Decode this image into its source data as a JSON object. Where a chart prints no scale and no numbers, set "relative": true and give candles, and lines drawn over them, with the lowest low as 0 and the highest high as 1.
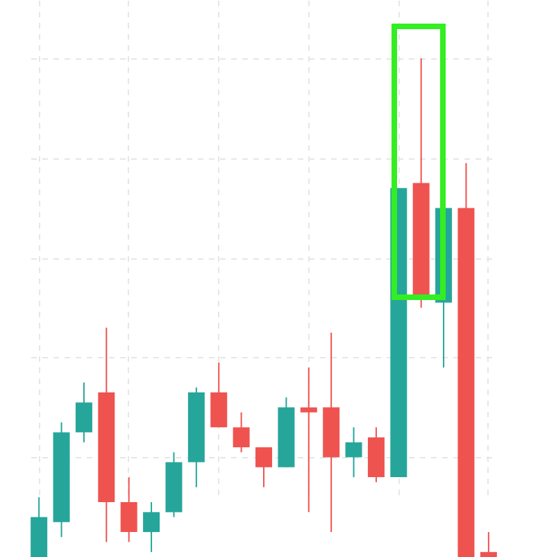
{
  "chart_data": {
    "type": "candlestick",
    "relative": true,
    "grid": true,
    "categories": [
      null,
      null,
      null,
      null,
      null,
      null,
      null,
      null,
      null,
      null,
      null,
      null,
      null,
      null,
      null,
      null,
      null,
      null,
      null,
      null,
      null
    ],
    "ohlc": [
      [
        0,
        0.12,
        0,
        0.08
      ],
      [
        0.07,
        0.27,
        0.04,
        0.25
      ],
      [
        0.25,
        0.35,
        0.23,
        0.31
      ],
      [
        0.33,
        0.46,
        0.03,
        0.11
      ],
      [
        0.11,
        0.16,
        0.03,
        0.05
      ],
      [
        0.05,
        0.11,
        0.01,
        0.09
      ],
      [
        0.09,
        0.21,
        0.08,
        0.19
      ],
      [
        0.19,
        0.34,
        0.14,
        0.33
      ],
      [
        0.33,
        0.39,
        0.26,
        0.26
      ],
      [
        0.26,
        0.29,
        0.21,
        0.22
      ],
      [
        0.22,
        0.22,
        0.14,
        0.18
      ],
      [
        0.18,
        0.32,
        0.18,
        0.3
      ],
      [
        0.3,
        0.38,
        0.09,
        0.29
      ],
      [
        0.3,
        0.45,
        0.05,
        0.2
      ],
      [
        0.2,
        0.26,
        0.16,
        0.23
      ],
      [
        0.24,
        0.26,
        0.15,
        0.16
      ],
      [
        0.16,
        0.74,
        0.16,
        0.74
      ],
      [
        0.75,
        1,
        0.5,
        0.52
      ],
      [
        0.51,
        0.7,
        0.38,
        0.7
      ],
      [
        0.7,
        0.79,
        0,
        0
      ],
      [
        0.01,
        0.05,
        0,
        0
      ]
    ],
    "colors": [
      "#26a69a",
      "#26a69a",
      "#26a69a",
      "#ef5350",
      "#ef5350",
      "#26a69a",
      "#26a69a",
      "#26a69a",
      "#ef5350",
      "#ef5350",
      "#ef5350",
      "#26a69a",
      "#ef5350",
      "#ef5350",
      "#26a69a",
      "#ef5350",
      "#26a69a",
      "#ef5350",
      "#26a69a",
      "#ef5350",
      "#ef5350"
    ]
  }
}
